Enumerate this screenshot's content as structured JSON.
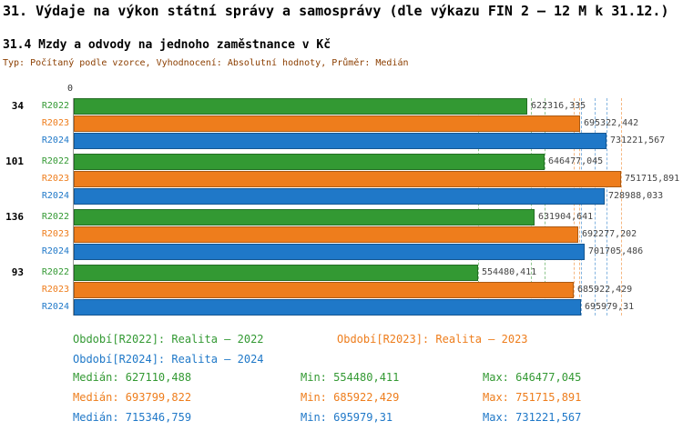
{
  "header": {
    "title": "31. Výdaje na výkon státní správy a samosprávy (dle výkazu FIN 2 – 12 M k 31.12.)",
    "subtitle": "31.4 Mzdy a odvody na jednoho zaměstnance v Kč",
    "meta": "Typ: Počítaný podle vzorce, Vyhodnocení: Absolutní hodnoty, Průměr: Medián"
  },
  "colors": {
    "r2022": "#339933",
    "r2023": "#EE7D1C",
    "r2024": "#1F78C8",
    "meta_text": "#8B3E00"
  },
  "chart_data": {
    "type": "bar",
    "orientation": "horizontal",
    "title": "31.4 Mzdy a odvody na jednoho zaměstnance v Kč",
    "axis_zero_label": "0",
    "xlim": [
      0,
      780000
    ],
    "grid": "dashed-min-median-max-markers",
    "legend_position": "bottom",
    "groups": [
      "34",
      "101",
      "136",
      "93"
    ],
    "series": [
      {
        "name": "R2022",
        "label": "Realita – 2022",
        "color_key": "r2022",
        "values": [
          622316.335,
          646477.045,
          631904.641,
          554480.411
        ],
        "value_labels": [
          "622316,335",
          "646477,045",
          "631904,641",
          "554480,411"
        ]
      },
      {
        "name": "R2023",
        "label": "Realita – 2023",
        "color_key": "r2023",
        "values": [
          695322.442,
          751715.891,
          692277.202,
          685922.429
        ],
        "value_labels": [
          "695322,442",
          "751715,891",
          "692277,202",
          "685922,429"
        ]
      },
      {
        "name": "R2024",
        "label": "Realita – 2024",
        "color_key": "r2024",
        "values": [
          731221.567,
          728988.033,
          701705.486,
          695979.31
        ],
        "value_labels": [
          "731221,567",
          "728988,033",
          "701705,486",
          "695979,31"
        ]
      }
    ],
    "markers": [
      {
        "series": "R2022",
        "min": 554480.411,
        "median": 627110.488,
        "max": 646477.045
      },
      {
        "series": "R2023",
        "min": 685922.429,
        "median": 693799.822,
        "max": 751715.891
      },
      {
        "series": "R2024",
        "min": 695979.31,
        "median": 715346.759,
        "max": 731221.567
      }
    ]
  },
  "legend": [
    {
      "label": "Období[R2022]: Realita – 2022"
    },
    {
      "label": "Období[R2023]: Realita – 2023"
    },
    {
      "label": "Období[R2024]: Realita – 2024"
    }
  ],
  "stats": [
    {
      "median": "Medián: 627110,488",
      "min": "Min: 554480,411",
      "max": "Max: 646477,045"
    },
    {
      "median": "Medián: 693799,822",
      "min": "Min: 685922,429",
      "max": "Max: 751715,891"
    },
    {
      "median": "Medián: 715346,759",
      "min": "Min: 695979,31",
      "max": "Max: 731221,567"
    }
  ]
}
